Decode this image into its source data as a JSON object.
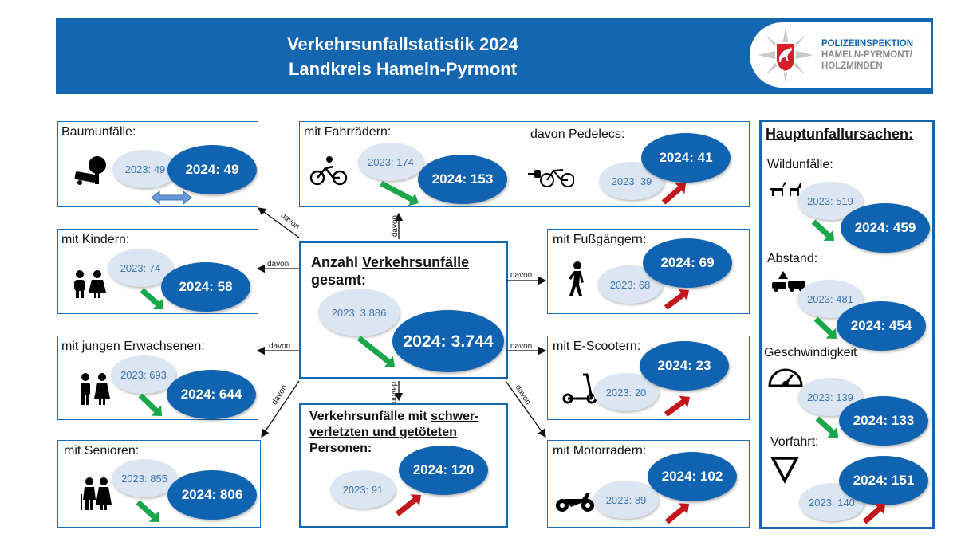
{
  "header": {
    "title_line1": "Verkehrsunfallstatistik 2024",
    "title_line2": "Landkreis Hameln-Pyrmont",
    "logo": {
      "line1": "POLIZEIINSPEKTION",
      "line2": "HAMELN-PYRMONT/",
      "line3": "HOLZMINDEN"
    }
  },
  "connector_label": "davon",
  "center": {
    "title_part1": "Anzahl ",
    "title_underlined": "Verkehrsunfälle",
    "title_part2": "gesamt:",
    "old": "2023: 3.886",
    "new": "2024: 3.744",
    "trend": "down"
  },
  "severe": {
    "title_part1": "Verkehrsunfälle mit ",
    "title_underlined1": "schwer-",
    "title_underlined2": "verletzten und getöteten",
    "title_part3": "Personen:",
    "old": "2023: 91",
    "new": "2024: 120",
    "trend": "up"
  },
  "boxes": {
    "baum": {
      "label": "Baumunfälle:",
      "old": "2023: 49",
      "new": "2024: 49",
      "trend": "equal",
      "icon": "tree-crash-icon"
    },
    "fahrrad": {
      "label": "mit Fahrrädern:",
      "old": "2023: 174",
      "new": "2024: 153",
      "trend": "down",
      "icon": "bicycle-icon"
    },
    "pedelec": {
      "label": "davon Pedelecs:",
      "old": "2023: 39",
      "new": "2024: 41",
      "trend": "up",
      "icon": "e-bike-icon"
    },
    "kinder": {
      "label": "mit Kindern:",
      "old": "2023: 74",
      "new": "2024: 58",
      "trend": "down",
      "icon": "children-icon"
    },
    "fuss": {
      "label": "mit Fußgängern:",
      "old": "2023: 68",
      "new": "2024: 69",
      "trend": "up",
      "icon": "pedestrian-icon"
    },
    "jung": {
      "label": "mit jungen Erwachsenen:",
      "old": "2023: 693",
      "new": "2024: 644",
      "trend": "down",
      "icon": "young-adults-icon"
    },
    "scooter": {
      "label": "mit E-Scootern:",
      "old": "2023: 20",
      "new": "2024: 23",
      "trend": "up",
      "icon": "e-scooter-icon"
    },
    "senioren": {
      "label": "mit Senioren:",
      "old": "2023: 855",
      "new": "2024: 806",
      "trend": "down",
      "icon": "seniors-icon"
    },
    "motor": {
      "label": "mit Motorrädern:",
      "old": "2023: 89",
      "new": "2024: 102",
      "trend": "up",
      "icon": "motorcycle-icon"
    }
  },
  "causes": {
    "title": "Hauptunfallursachen:",
    "items": [
      {
        "label": "Wildunfälle:",
        "old": "2023: 519",
        "new": "2024: 459",
        "trend": "down",
        "icon": "deer-icon"
      },
      {
        "label": "Abstand:",
        "old": "2023: 481",
        "new": "2024: 454",
        "trend": "down",
        "icon": "rear-end-collision-icon"
      },
      {
        "label": "Geschwindigkeit",
        "old": "2023: 139",
        "new": "2024: 133",
        "trend": "down",
        "icon": "speedometer-icon"
      },
      {
        "label": "Vorfahrt:",
        "old": "2023: 140",
        "new": "2024: 151",
        "trend": "up",
        "icon": "yield-sign-icon"
      }
    ]
  },
  "colors": {
    "brand_blue": "#1566b0",
    "down": "#1aa64a",
    "up": "#c0161c",
    "equal": "#6a9ad6",
    "old_bubble": "#dce6f2"
  }
}
